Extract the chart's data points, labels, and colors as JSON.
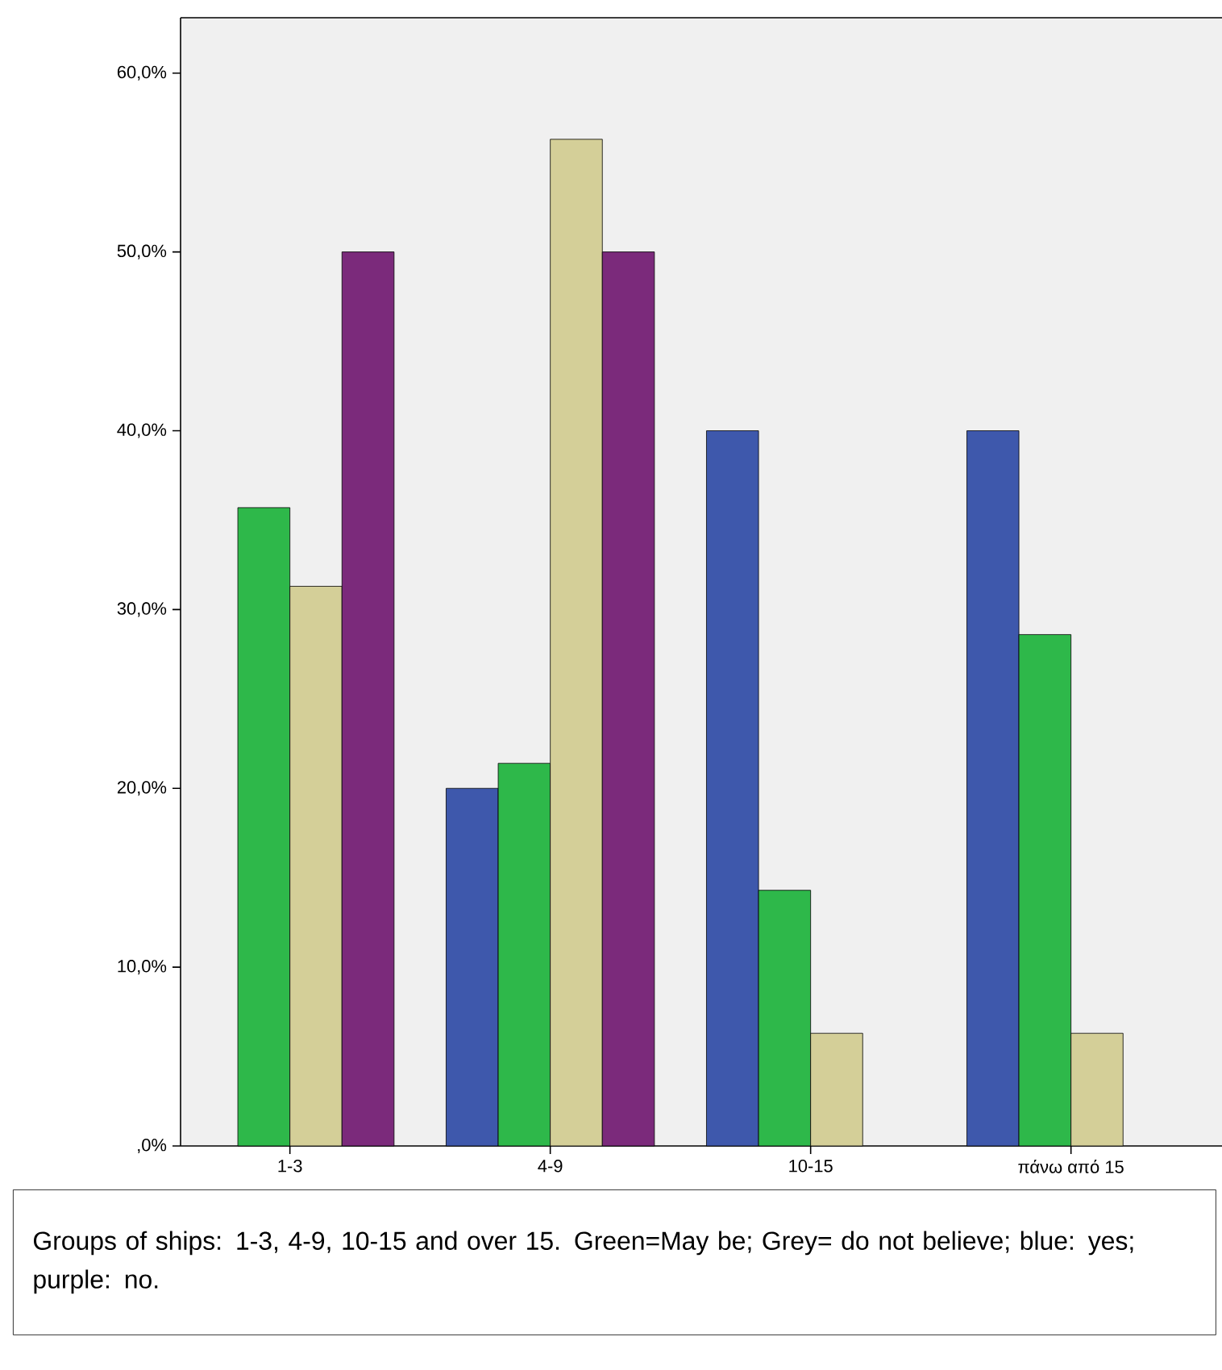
{
  "chart_data": {
    "type": "bar",
    "categories": [
      "1-3",
      "4-9",
      "10-15",
      "πάνω από 15"
    ],
    "series": [
      {
        "color": "#3e58ac",
        "values": [
          null,
          20,
          40,
          40
        ]
      },
      {
        "color": "#2eb84a",
        "values": [
          35.7,
          21.4,
          14.3,
          28.6
        ]
      },
      {
        "color": "#d4cf98",
        "values": [
          31.3,
          56.3,
          6.3,
          6.3
        ]
      },
      {
        "color": "#7b2a7b",
        "values": [
          50,
          50,
          null,
          null
        ]
      }
    ],
    "ylim": [
      0,
      63.1
    ],
    "yticks": [
      {
        "value": 0,
        "label": ",0%"
      },
      {
        "value": 10,
        "label": "10,0%"
      },
      {
        "value": 20,
        "label": "20,0%"
      },
      {
        "value": 30,
        "label": "30,0%"
      },
      {
        "value": 40,
        "label": "40,0%"
      },
      {
        "value": 50,
        "label": "50,0%"
      },
      {
        "value": 60,
        "label": "60,0%"
      }
    ],
    "annotations": [
      "Groups of ships: 1-3, 4-9, 10-15 and over 15. Green=May be; Grey= do not believe; blue: yes; purple: no."
    ]
  }
}
